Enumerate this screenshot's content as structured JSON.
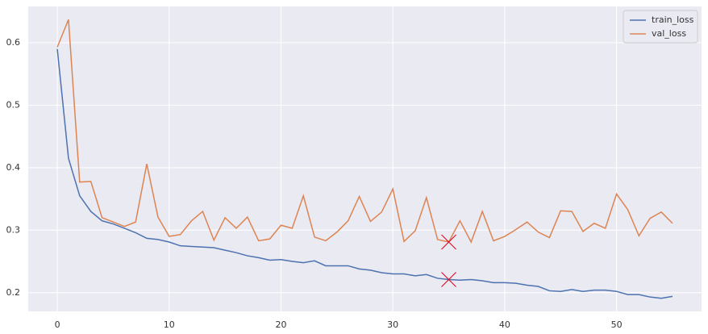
{
  "chart_data": {
    "type": "line",
    "x": [
      0,
      1,
      2,
      3,
      4,
      5,
      6,
      7,
      8,
      9,
      10,
      11,
      12,
      13,
      14,
      15,
      16,
      17,
      18,
      19,
      20,
      21,
      22,
      23,
      24,
      25,
      26,
      27,
      28,
      29,
      30,
      31,
      32,
      33,
      34,
      35,
      36,
      37,
      38,
      39,
      40,
      41,
      42,
      43,
      44,
      45,
      46,
      47,
      48,
      49,
      50,
      51,
      52,
      53,
      54,
      55
    ],
    "series": [
      {
        "name": "train_loss",
        "color": "#4c72b0",
        "values": [
          0.59,
          0.415,
          0.355,
          0.33,
          0.315,
          0.31,
          0.303,
          0.296,
          0.287,
          0.285,
          0.281,
          0.275,
          0.274,
          0.273,
          0.272,
          0.268,
          0.264,
          0.259,
          0.256,
          0.252,
          0.253,
          0.25,
          0.248,
          0.251,
          0.243,
          0.243,
          0.243,
          0.238,
          0.236,
          0.232,
          0.23,
          0.23,
          0.227,
          0.229,
          0.223,
          0.221,
          0.22,
          0.221,
          0.219,
          0.216,
          0.216,
          0.215,
          0.212,
          0.21,
          0.203,
          0.202,
          0.205,
          0.202,
          0.204,
          0.204,
          0.202,
          0.197,
          0.197,
          0.193,
          0.191,
          0.194
        ]
      },
      {
        "name": "val_loss",
        "color": "#dd8452",
        "values": [
          0.593,
          0.637,
          0.377,
          0.378,
          0.32,
          0.313,
          0.306,
          0.313,
          0.406,
          0.321,
          0.29,
          0.293,
          0.315,
          0.33,
          0.284,
          0.32,
          0.303,
          0.321,
          0.283,
          0.286,
          0.308,
          0.303,
          0.355,
          0.289,
          0.283,
          0.297,
          0.315,
          0.354,
          0.314,
          0.329,
          0.366,
          0.282,
          0.299,
          0.352,
          0.285,
          0.281,
          0.315,
          0.281,
          0.33,
          0.283,
          0.29,
          0.301,
          0.313,
          0.297,
          0.288,
          0.331,
          0.33,
          0.298,
          0.311,
          0.303,
          0.358,
          0.333,
          0.291,
          0.319,
          0.329,
          0.311
        ]
      }
    ],
    "markers": {
      "color": "#e3001b",
      "x": [
        35,
        35
      ],
      "y": [
        0.281,
        0.221
      ]
    },
    "xlim": [
      -2.6,
      57.6
    ],
    "xticks": [
      0,
      10,
      20,
      30,
      40,
      50
    ],
    "ylim": [
      0.17,
      0.658
    ],
    "yticks": [
      0.2,
      0.3,
      0.4,
      0.5,
      0.6
    ],
    "grid": true,
    "legend": "upper-right"
  }
}
